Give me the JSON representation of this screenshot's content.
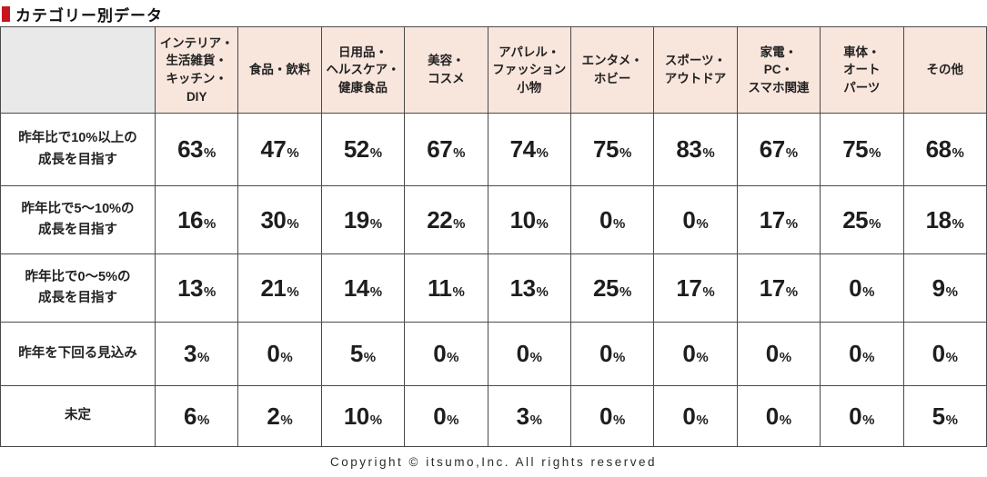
{
  "title": "カテゴリー別データ",
  "accent_color": "#c8161e",
  "header_bg": "#f8e5dc",
  "corner_bg": "#e9e9e9",
  "footer": "Copyright © itsumo,Inc. All rights reserved",
  "chart_data": {
    "type": "table",
    "title": "カテゴリー別データ",
    "unit": "%",
    "columns": [
      "インテリア・\n生活雑貨・\nキッチン・\nDIY",
      "食品・飲料",
      "日用品・\nヘルスケア・\n健康食品",
      "美容・\nコスメ",
      "アパレル・\nファッション\n小物",
      "エンタメ・\nホビー",
      "スポーツ・\nアウトドア",
      "家電・\nPC・\nスマホ関連",
      "車体・\nオート\nパーツ",
      "その他"
    ],
    "rows": [
      {
        "label": "昨年比で10%以上の\n成長を目指す",
        "values": [
          63,
          47,
          52,
          67,
          74,
          75,
          83,
          67,
          75,
          68
        ]
      },
      {
        "label": "昨年比で5〜10%の\n成長を目指す",
        "values": [
          16,
          30,
          19,
          22,
          10,
          0,
          0,
          17,
          25,
          18
        ]
      },
      {
        "label": "昨年比で0〜5%の\n成長を目指す",
        "values": [
          13,
          21,
          14,
          11,
          13,
          25,
          17,
          17,
          0,
          9
        ]
      },
      {
        "label": "昨年を下回る見込み",
        "values": [
          3,
          0,
          5,
          0,
          0,
          0,
          0,
          0,
          0,
          0
        ]
      },
      {
        "label": "未定",
        "values": [
          6,
          2,
          10,
          0,
          3,
          0,
          0,
          0,
          0,
          5
        ]
      }
    ]
  }
}
